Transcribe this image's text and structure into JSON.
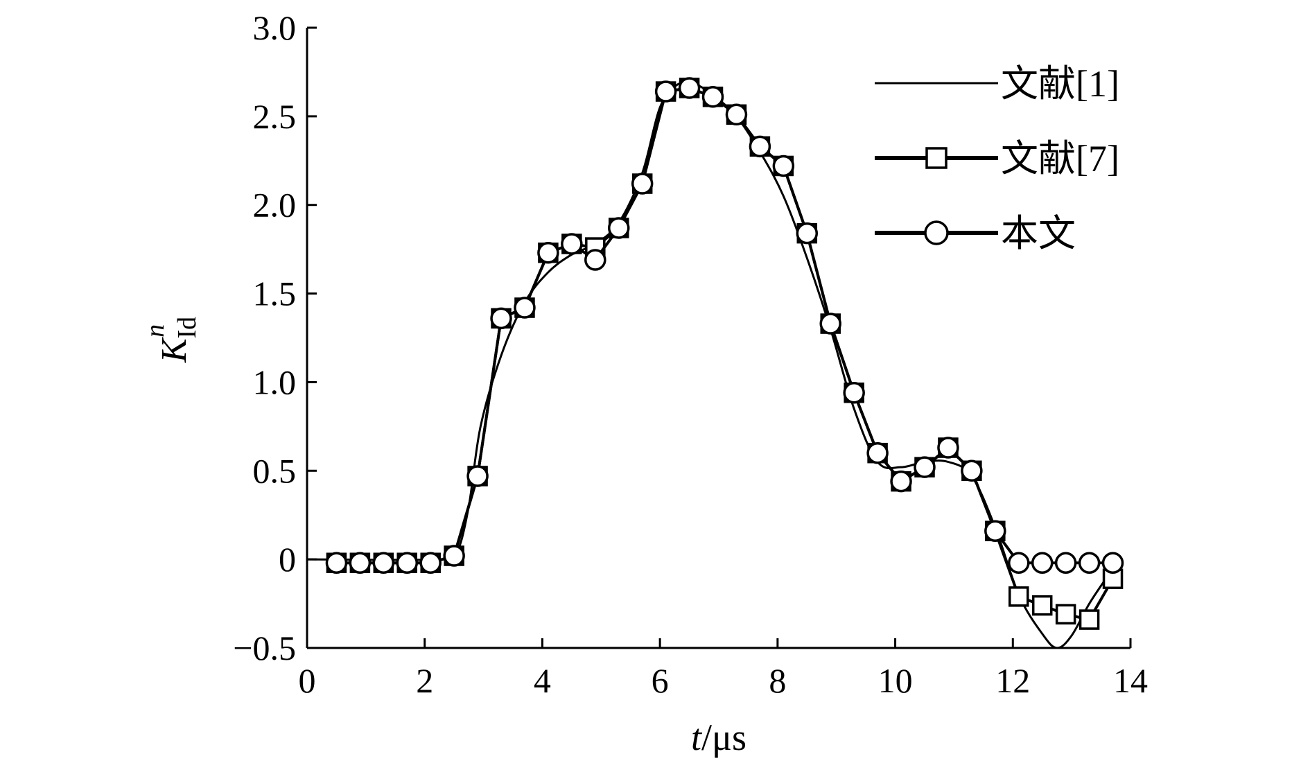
{
  "chart_data": {
    "type": "line",
    "xlabel": {
      "var": "t",
      "unit": "/μs"
    },
    "ylabel": {
      "base": "K",
      "sub": "Id",
      "sup": "n"
    },
    "xlim": [
      0,
      14
    ],
    "ylim": [
      -0.5,
      3.0
    ],
    "xticks": [
      0,
      2,
      4,
      6,
      8,
      10,
      12,
      14
    ],
    "yticks": [
      -0.5,
      0,
      0.5,
      1.0,
      1.5,
      2.0,
      2.5,
      3.0
    ],
    "ytick_labels": [
      "−0.5",
      "0",
      "0.5",
      "1.0",
      "1.5",
      "2.0",
      "2.5",
      "3.0"
    ],
    "legend_position": "top-right",
    "series": [
      {
        "name": "文献[1]",
        "marker": "none",
        "smooth": true,
        "x": [
          0,
          2.3,
          2.55,
          2.75,
          2.95,
          3.3,
          3.7,
          4.1,
          4.5,
          4.9,
          5.3,
          5.7,
          6.0,
          6.3,
          6.6,
          6.9,
          7.3,
          7.7,
          8.1,
          8.5,
          8.9,
          9.3,
          9.7,
          10.1,
          10.5,
          10.9,
          11.3,
          11.7,
          12.1,
          12.5,
          12.75,
          13.0,
          13.3,
          13.6,
          13.7
        ],
        "y": [
          0.0,
          0.0,
          0.04,
          0.3,
          0.75,
          1.15,
          1.45,
          1.62,
          1.72,
          1.78,
          1.9,
          2.18,
          2.55,
          2.68,
          2.68,
          2.62,
          2.5,
          2.3,
          2.05,
          1.7,
          1.3,
          0.85,
          0.55,
          0.52,
          0.55,
          0.55,
          0.47,
          0.18,
          -0.2,
          -0.42,
          -0.5,
          -0.43,
          -0.25,
          -0.1,
          -0.05
        ]
      },
      {
        "name": "文献[7]",
        "marker": "square",
        "x": [
          0.5,
          0.9,
          1.3,
          1.7,
          2.1,
          2.5,
          2.9,
          3.3,
          3.7,
          4.1,
          4.5,
          4.9,
          5.3,
          5.7,
          6.1,
          6.5,
          6.9,
          7.3,
          7.7,
          8.1,
          8.5,
          8.9,
          9.3,
          9.7,
          10.1,
          10.5,
          10.9,
          11.3,
          11.7,
          12.1,
          12.5,
          12.9,
          13.3,
          13.7
        ],
        "y": [
          -0.02,
          -0.02,
          -0.02,
          -0.02,
          -0.02,
          0.02,
          0.47,
          1.36,
          1.42,
          1.73,
          1.78,
          1.76,
          1.87,
          2.12,
          2.64,
          2.66,
          2.61,
          2.51,
          2.33,
          2.22,
          1.84,
          1.33,
          0.94,
          0.6,
          0.44,
          0.52,
          0.63,
          0.5,
          0.16,
          -0.21,
          -0.26,
          -0.31,
          -0.34,
          -0.11
        ]
      },
      {
        "name": "本文",
        "marker": "circle",
        "x": [
          0.5,
          0.9,
          1.3,
          1.7,
          2.1,
          2.5,
          2.9,
          3.3,
          3.7,
          4.1,
          4.5,
          4.9,
          5.3,
          5.7,
          6.1,
          6.5,
          6.9,
          7.3,
          7.7,
          8.1,
          8.5,
          8.9,
          9.3,
          9.7,
          10.1,
          10.5,
          10.9,
          11.3,
          11.7,
          12.1,
          12.5,
          12.9,
          13.3,
          13.7
        ],
        "y": [
          -0.02,
          -0.02,
          -0.02,
          -0.02,
          -0.02,
          0.02,
          0.47,
          1.36,
          1.42,
          1.73,
          1.78,
          1.69,
          1.87,
          2.12,
          2.64,
          2.66,
          2.61,
          2.51,
          2.33,
          2.22,
          1.84,
          1.33,
          0.94,
          0.6,
          0.44,
          0.52,
          0.63,
          0.5,
          0.16,
          -0.02,
          -0.02,
          -0.02,
          -0.02,
          -0.02
        ]
      }
    ]
  }
}
